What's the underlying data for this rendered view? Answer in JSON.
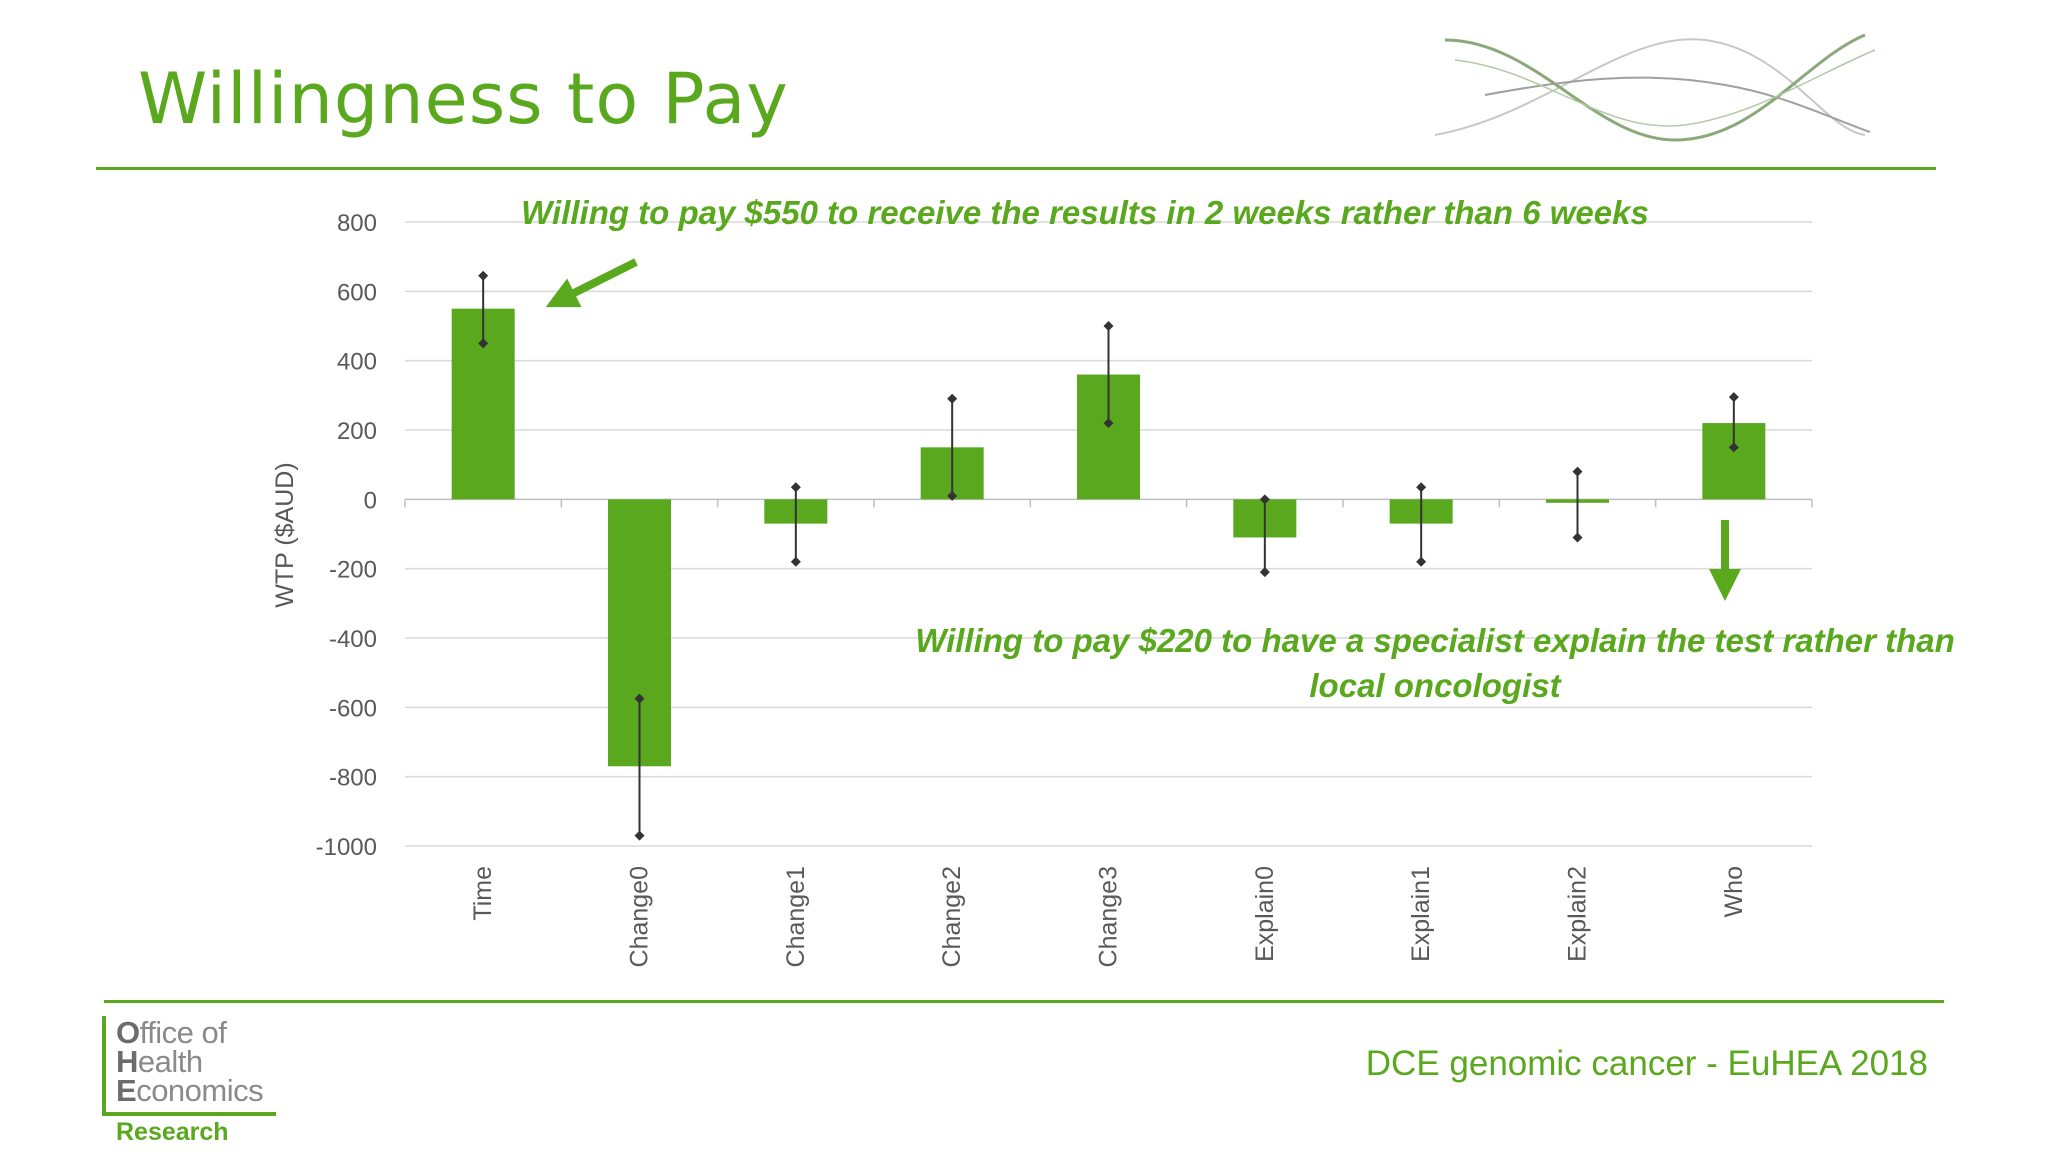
{
  "slide": {
    "title": "Willingness to Pay",
    "footer": "DCE genomic cancer - EuHEA 2018",
    "logo": {
      "line1_cap": "O",
      "line1_rest": "ffice of",
      "line2_cap": "H",
      "line2_rest": "ealth",
      "line3_cap": "E",
      "line3_rest": "conomics",
      "subtitle": "Research"
    }
  },
  "colors": {
    "accent": "#5aa81e",
    "bar": "#5aa81e",
    "grid": "#d9d9d9",
    "axis_text": "#595959",
    "errorbar": "#333333"
  },
  "chart_data": {
    "type": "bar",
    "title": "",
    "xlabel": "",
    "ylabel": "WTP ($AUD)",
    "ylim": [
      -1000,
      800
    ],
    "yticks": [
      800,
      600,
      400,
      200,
      0,
      -200,
      -400,
      -600,
      -800,
      -1000
    ],
    "grid": true,
    "categories": [
      "Time",
      "Change0",
      "Change1",
      "Change2",
      "Change3",
      "Explain0",
      "Explain1",
      "Explain2",
      "Who"
    ],
    "values": [
      550,
      -770,
      -70,
      150,
      360,
      -110,
      -70,
      -10,
      220
    ],
    "error_low": [
      450,
      -970,
      -180,
      10,
      220,
      -210,
      -180,
      -110,
      150
    ],
    "error_high": [
      645,
      -575,
      35,
      290,
      500,
      0,
      35,
      80,
      295
    ],
    "annotations": [
      {
        "text": "Willing to pay $550 to receive the results in 2 weeks rather than 6 weeks",
        "target": "Time"
      },
      {
        "text_line1": "Willing to pay $220 to have a specialist explain the test rather than",
        "text_line2": "local oncologist",
        "target": "Who"
      }
    ]
  }
}
